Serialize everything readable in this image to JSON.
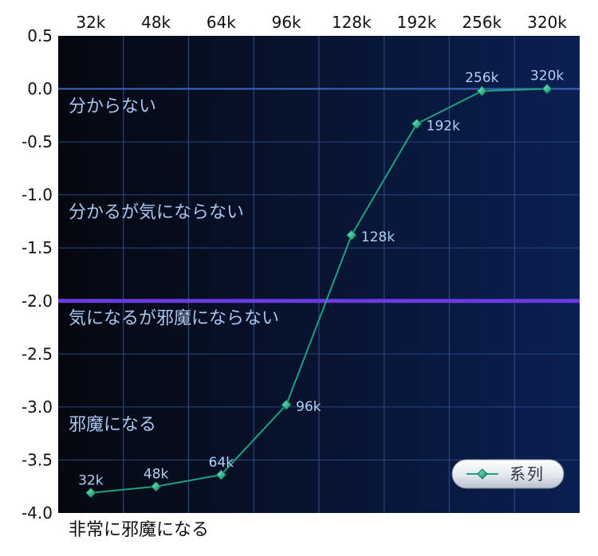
{
  "chart_data": {
    "type": "line",
    "categories": [
      "32k",
      "48k",
      "64k",
      "96k",
      "128k",
      "192k",
      "256k",
      "320k"
    ],
    "series": [
      {
        "name": "系列",
        "values": [
          -3.81,
          -3.75,
          -3.64,
          -2.98,
          -1.38,
          -0.33,
          -0.02,
          0.0
        ],
        "point_labels": [
          "32k",
          "48k",
          "64k",
          "96k",
          "128k",
          "192k",
          "256k",
          "320k"
        ],
        "color": "#1aa37f"
      }
    ],
    "ylim": [
      -4.0,
      0.5
    ],
    "yticks": [
      "0.5",
      "0.0",
      "-0.5",
      "-1.0",
      "-1.5",
      "-2.0",
      "-2.5",
      "-3.0",
      "-3.5",
      "-4.0"
    ],
    "threshold": {
      "value": -2.0,
      "color": "#6a3be0"
    },
    "zone_labels": [
      {
        "text": "分からない",
        "y": -0.15
      },
      {
        "text": "分かるが気にならない",
        "y": -1.15
      },
      {
        "text": "気になるが邪魔にならない",
        "y": -2.15
      },
      {
        "text": "邪魔になる",
        "y": -3.15
      }
    ],
    "below_axis_label": "非常に邪魔になる",
    "legend": {
      "position": "bottom-right",
      "label": "系列"
    },
    "grid": true,
    "colors": {
      "plot_bg_left": "#05080f",
      "plot_bg_right": "#0a1f52",
      "grid": "#2a4680",
      "zero_line": "#3a68c0",
      "zone_text": "#a8c6ee",
      "point_label": "#b2d0f2",
      "axis_text": "#111111"
    }
  }
}
